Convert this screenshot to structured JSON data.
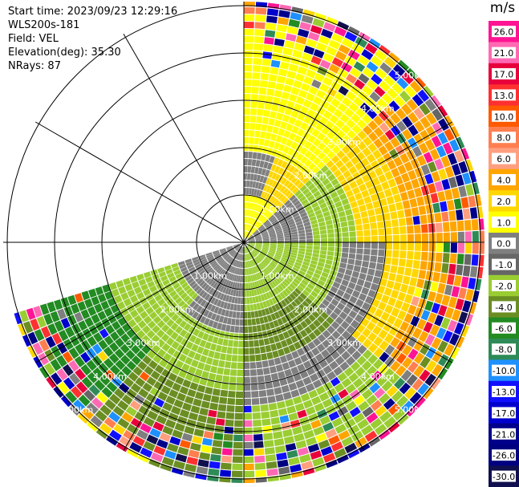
{
  "info": {
    "start_time": "Start time: 2023/09/23 12:29:16",
    "instrument": "WLS200s-181",
    "field": "Field: VEL",
    "elevation": "Elevation(deg): 35.30",
    "nrays": "NRays: 87"
  },
  "colorbar": {
    "unit": "m/s",
    "labels": [
      "26.0",
      "21.0",
      "17.0",
      "13.0",
      "10.0",
      "8.0",
      "6.0",
      "4.0",
      "2.0",
      "1.0",
      "0.0",
      "-1.0",
      "-2.0",
      "-4.0",
      "-6.0",
      "-8.0",
      "-10.0",
      "-13.0",
      "-17.0",
      "-21.0",
      "-26.0",
      "-30.0"
    ],
    "colors": [
      "#ff1493",
      "#ff69b4",
      "#e8003c",
      "#ff3030",
      "#ff5a00",
      "#ff7f50",
      "#ff9f80",
      "#ffa500",
      "#ffd700",
      "#ffff00",
      "#7f7f7f",
      "#666666",
      "#9acd32",
      "#6b8e23",
      "#228b22",
      "#2e8b57",
      "#1e90ff",
      "#1010ff",
      "#0000cd",
      "#00008b",
      "#000080",
      "#101050"
    ]
  },
  "range_rings": {
    "labels": [
      "1.00km",
      "2.00km",
      "3.00km",
      "4.00km",
      "5.00km"
    ]
  }
}
